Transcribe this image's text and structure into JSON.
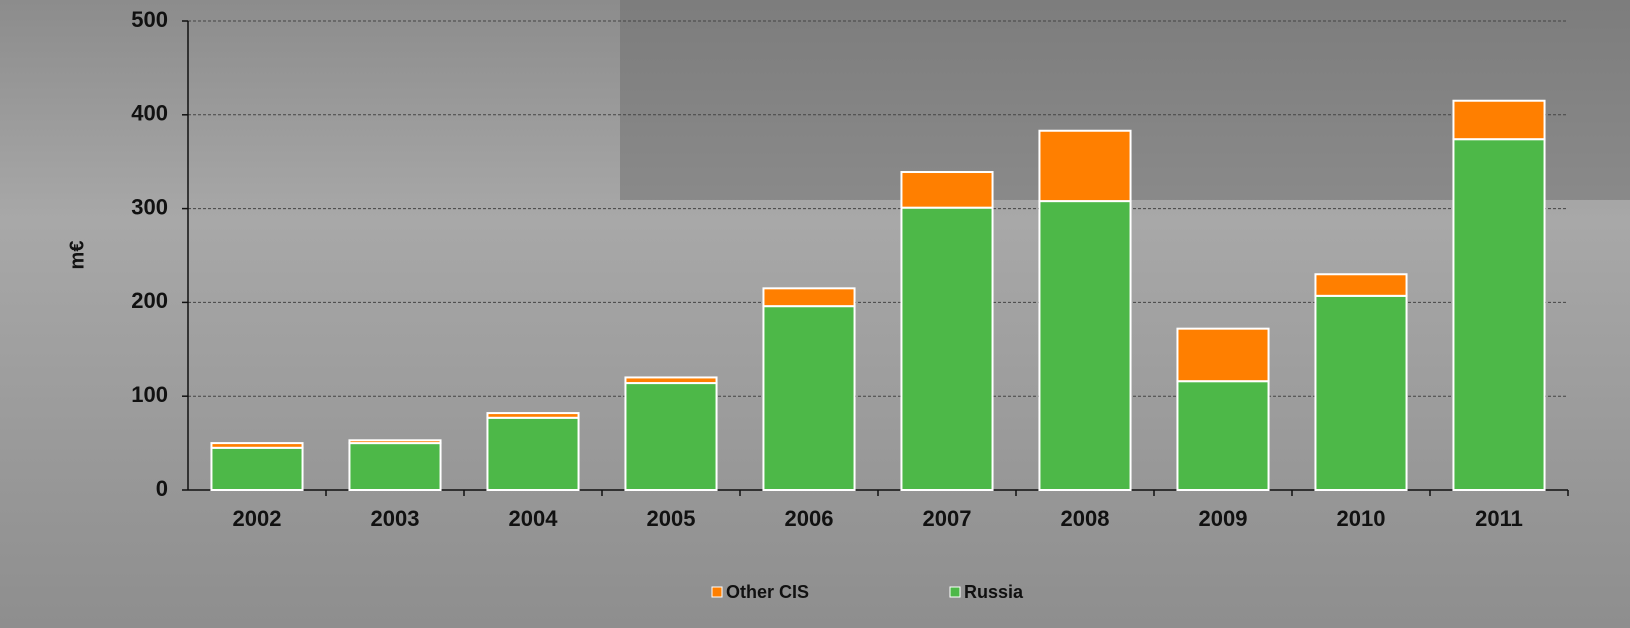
{
  "chart_data": {
    "type": "stacked_bar",
    "y_label": "m€",
    "categories": [
      "2002",
      "2003",
      "2004",
      "2005",
      "2006",
      "2007",
      "2008",
      "2009",
      "2010",
      "2011"
    ],
    "series": [
      {
        "name": "Other CIS",
        "color": "#ff7f00",
        "values": [
          5,
          3,
          5,
          6,
          19,
          38,
          75,
          56,
          23,
          41
        ]
      },
      {
        "name": "Russia",
        "color": "#4db848",
        "values": [
          45,
          50,
          77,
          114,
          196,
          301,
          308,
          116,
          207,
          374
        ]
      }
    ],
    "ylim": [
      0,
      500
    ],
    "yticks": [
      0,
      100,
      200,
      300,
      400,
      500
    ],
    "grid": true
  }
}
